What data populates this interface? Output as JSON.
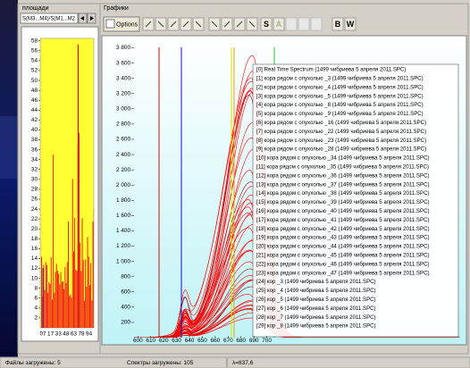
{
  "window": {
    "left_panel": {
      "title": "площади",
      "selector": "S(M3...M4)/S(M1...M2",
      "chart": {
        "ylim": [
          0,
          58.5
        ],
        "yticks": [
          2,
          4,
          6,
          8,
          10,
          12,
          14,
          16,
          18,
          20,
          22,
          24,
          26,
          28,
          30,
          32,
          34,
          36,
          38,
          40,
          42,
          44,
          46,
          48,
          50,
          52,
          54,
          56,
          58
        ],
        "x_labels": [
          "07",
          "17",
          "33",
          "48",
          "63",
          "78",
          "94"
        ]
      }
    },
    "right_panel": {
      "title": "Графики",
      "toolbar": {
        "options": "Options",
        "buttons": [
          "S",
          "A",
          "B",
          "W"
        ]
      },
      "chart": {
        "xlim": [
          597,
          850
        ],
        "xticks": [
          600,
          610,
          620,
          630,
          640,
          650,
          660,
          670,
          680,
          690,
          700
        ],
        "ylim": [
          0,
          3900
        ],
        "yticks": [
          200,
          400,
          600,
          800,
          {
            "value": 1000,
            "label": "1 000"
          },
          {
            "value": 1200,
            "label": "1 200"
          },
          {
            "value": 1400,
            "label": "1 400"
          },
          {
            "value": 1600,
            "label": "1 600"
          },
          {
            "value": 1800,
            "label": "1 800"
          },
          {
            "value": 2000,
            "label": "2 000"
          },
          {
            "value": 2200,
            "label": "2 200"
          },
          {
            "value": 2400,
            "label": "2 400"
          },
          {
            "value": 2600,
            "label": "2 600"
          },
          {
            "value": 2800,
            "label": "2 800"
          },
          {
            "value": 3000,
            "label": "3 000"
          },
          {
            "value": 3200,
            "label": "3 200"
          },
          {
            "value": 3400,
            "label": "3 400"
          },
          {
            "value": 3600,
            "label": "3 600"
          },
          {
            "value": 3800,
            "label": "3 800"
          }
        ],
        "legend": [
          "[0] Real Time Spectrum (1499 чибриева 5 апреля 2011.SPC)",
          "[1] кора рядом с опухолью _3 (1499 чибриева 5 апреля 2011.SPC)",
          "[2] кора рядом с опухолью _4 (1499 чибриева 5 апреля 2011.SPC)",
          "[3] кора рядом с опухолью _5 (1499 чибриева 5 апреля 2011.SPC)",
          "[4] кора рядом с опухолью _8 (1499 чибриева 5 апреля 2011.SPC)",
          "[5] кора рядом с опухолью _9 (1499 чибриева 5 апреля 2011.SPC)",
          "[6] кора рядом с опухолью _16 (1499 чибриева 5 апреля 2011.SPC)",
          "[7] кора рядом с опухолью _22 (1499 чибриева 5 апреля 2011.SPC)",
          "[8] кора рядом с опухолью _23 (1499 чибриева 5 апреля 2011.SPC)",
          "[9] кора рядом с опухолью _28 (1499 чибриева 5 апреля 2011.SPC)",
          "[10] кора рядом с опухолью _34 (1499 чибриева 5 апреля 2011.SPC)",
          "[11] кора рядом с опухолью _35 (1499 чибриева 5 апреля 2011.SPC)",
          "[12] кора рядом с опухолью _36 (1499 чибриева 5 апреля 2011.SPC)",
          "[13] кора рядом с опухолью _37 (1499 чибриева 5 апреля 2011.SPC)",
          "[14] кора рядом с опухолью _38 (1499 чибриева 5 апреля 2011.SPC)",
          "[15] кора рядом с опухолью _39 (1499 чибриева 5 апреля 2011.SPC)",
          "[16] кора рядом с опухолью _40 (1499 чибриева 5 апреля 2011.SPC)",
          "[17] кора рядом с опухолью _41 (1499 чибриева 5 апреля 2011.SPC)",
          "[18] кора рядом с опухолью _42 (1499 чибриева 5 апреля 2011.SPC)",
          "[19] кора рядом с опухолью _43 (1499 чибриева 5 апреля 2011.SPC)",
          "[20] кора рядом с опухолью _44 (1499 чибриева 5 апреля 2011.SPC)",
          "[21] кора рядом с опухолью _45 (1499 чибриева 5 апреля 2011.SPC)",
          "[22] кора рядом с опухолью _46 (1499 чибриева 5 апреля 2011.SPC)",
          "[23] кора рядом с опухолью _47 (1499 чибриева 5 апреля 2011.SPC)",
          "[24] кор _3 (1499 чибриева 5 апреля 2011.SPC)",
          "[25] кор _4 (1499 чибриева 5 апреля 2011.SPC)",
          "[26] кор _5 (1499 чибриева 5 апреля 2011.SPC)",
          "[27] кор _6 (1499 чибриева 5 апреля 2011.SPC)",
          "[28] кор _7 (1499 чибриева 5 апреля 2011.SPC)",
          "[29] кор _8 (1499 чибриева 5 апреля 2011.SPC)"
        ]
      }
    },
    "status_bar": [
      "Файлы загружены: 5",
      "Спектры загружены: 105",
      "λ=837,6"
    ]
  }
}
